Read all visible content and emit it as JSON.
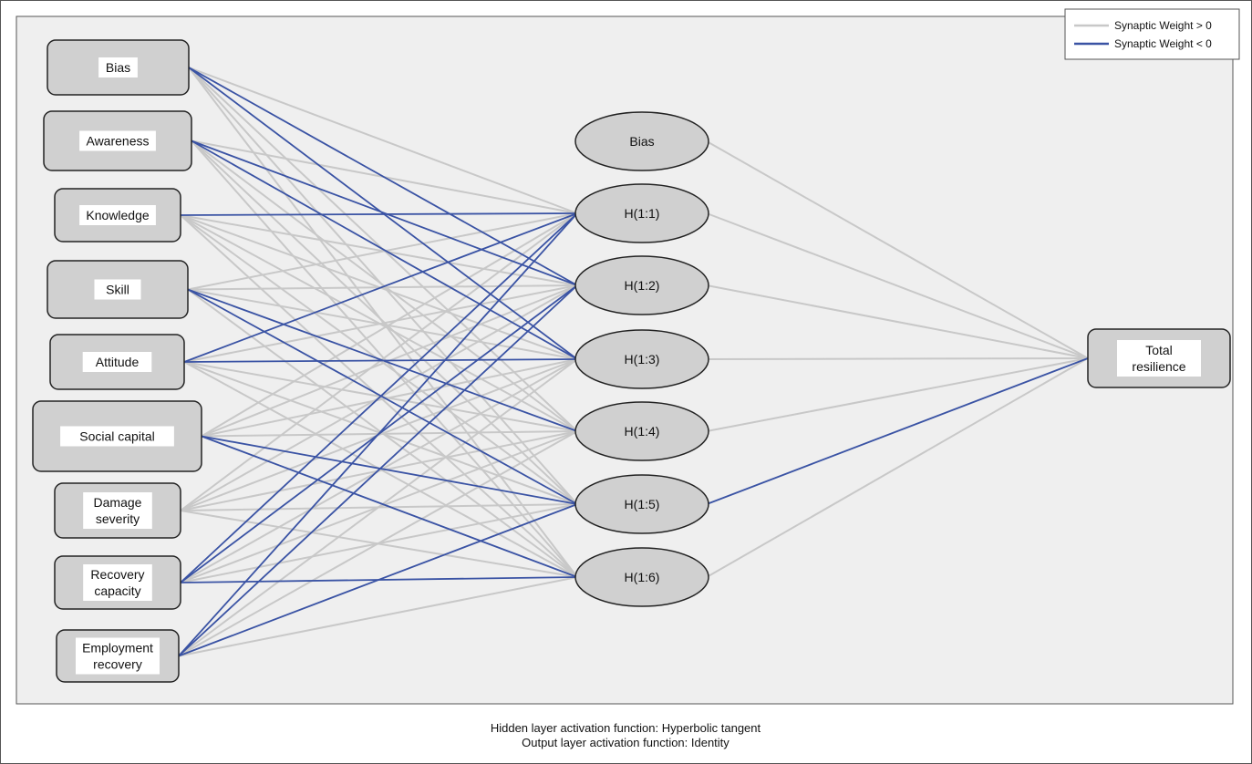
{
  "input_layer": [
    {
      "id": "in-bias",
      "label": [
        "Bias"
      ]
    },
    {
      "id": "in-awareness",
      "label": [
        "Awareness"
      ]
    },
    {
      "id": "in-knowledge",
      "label": [
        "Knowledge"
      ]
    },
    {
      "id": "in-skill",
      "label": [
        "Skill"
      ]
    },
    {
      "id": "in-attitude",
      "label": [
        "Attitude"
      ]
    },
    {
      "id": "in-social-capital",
      "label": [
        "Social capital"
      ]
    },
    {
      "id": "in-damage-severity",
      "label": [
        "Damage",
        "severity"
      ]
    },
    {
      "id": "in-recovery-capacity",
      "label": [
        "Recovery",
        "capacity"
      ]
    },
    {
      "id": "in-employment-recovery",
      "label": [
        "Employment",
        "recovery"
      ]
    }
  ],
  "hidden_layer": [
    {
      "id": "hid-bias",
      "label": "Bias"
    },
    {
      "id": "h1",
      "label": "H(1:1)"
    },
    {
      "id": "h2",
      "label": "H(1:2)"
    },
    {
      "id": "h3",
      "label": "H(1:3)"
    },
    {
      "id": "h4",
      "label": "H(1:4)"
    },
    {
      "id": "h5",
      "label": "H(1:5)"
    },
    {
      "id": "h6",
      "label": "H(1:6)"
    }
  ],
  "output_layer": [
    {
      "id": "out-total-resilience",
      "label": [
        "Total",
        "resilience"
      ]
    }
  ],
  "legend": {
    "positive_label": "Synaptic Weight > 0",
    "negative_label": "Synaptic Weight < 0",
    "positive_color": "#c8c8c8",
    "negative_color": "#3a53a4"
  },
  "input_hidden_signs": [
    [
      "+",
      "-",
      "-",
      "+",
      "+",
      "+"
    ],
    [
      "+",
      "-",
      "-",
      "+",
      "+",
      "+"
    ],
    [
      "-",
      "+",
      "+",
      "+",
      "+",
      "+"
    ],
    [
      "+",
      "+",
      "+",
      "-",
      "-",
      "+"
    ],
    [
      "-",
      "+",
      "-",
      "+",
      "+",
      "+"
    ],
    [
      "+",
      "+",
      "+",
      "+",
      "-",
      "-"
    ],
    [
      "+",
      "+",
      "+",
      "+",
      "+",
      "+"
    ],
    [
      "-",
      "-",
      "+",
      "+",
      "+",
      "-"
    ],
    [
      "-",
      "-",
      "+",
      "+",
      "-",
      "+"
    ]
  ],
  "hidden_output_signs": [
    "+",
    "+",
    "+",
    "+",
    "+",
    "-",
    "+"
  ],
  "footer": {
    "line1": "Hidden layer activation function: Hyperbolic tangent",
    "line2": "Output layer activation function: Identity"
  }
}
